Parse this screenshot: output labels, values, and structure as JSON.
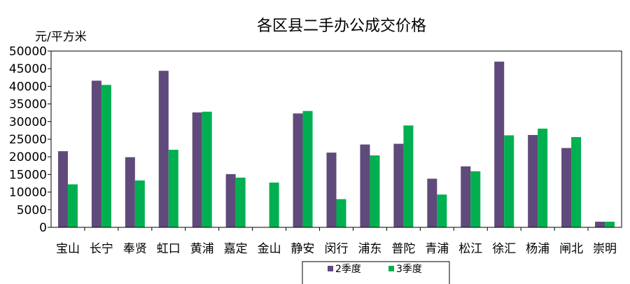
{
  "chart_data": {
    "type": "bar",
    "title": "各区县二手办公成交价格",
    "ylabel": "元/平方米",
    "xlabel": "",
    "ylim": [
      0,
      50000
    ],
    "yticks": [
      0,
      5000,
      10000,
      15000,
      20000,
      25000,
      30000,
      35000,
      40000,
      45000,
      50000
    ],
    "grid": false,
    "legend_position": "bottom",
    "categories": [
      "宝山",
      "长宁",
      "奉贤",
      "虹口",
      "黄浦",
      "嘉定",
      "金山",
      "静安",
      "闵行",
      "浦东",
      "普陀",
      "青浦",
      "松江",
      "徐汇",
      "杨浦",
      "闸北",
      "崇明"
    ],
    "series": [
      {
        "name": "2季度",
        "color": "#604a7b",
        "values": [
          21600,
          41600,
          19900,
          44400,
          32600,
          15100,
          0,
          32300,
          21200,
          23500,
          23700,
          13800,
          17300,
          47000,
          26200,
          22500,
          1600
        ]
      },
      {
        "name": "3季度",
        "color": "#00b050",
        "values": [
          12200,
          40400,
          13300,
          22000,
          32800,
          14100,
          12700,
          33000,
          8000,
          20400,
          28900,
          9300,
          15900,
          26100,
          28000,
          25600,
          1600
        ]
      }
    ]
  }
}
